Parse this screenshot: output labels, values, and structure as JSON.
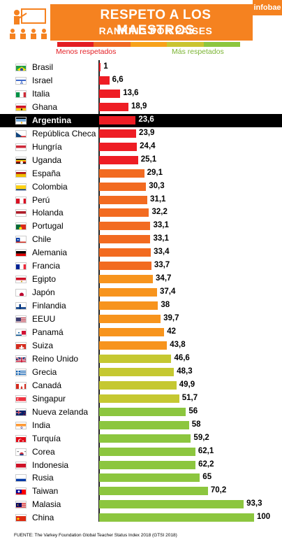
{
  "header": {
    "title": "RESPETO A LOS MAESTROS",
    "subtitle": "RANKING POR PAÍSES",
    "logo": "infobae",
    "teacher_icon": "teacher-classroom-icon"
  },
  "legend": {
    "left_label": "Menos respetados",
    "right_label": "Más respetados",
    "scale_colors": [
      "#e31d23",
      "#f06a22",
      "#f7a21b",
      "#c9c431",
      "#8cc63f"
    ]
  },
  "colors": {
    "red": "#ee1d24",
    "orange_dark": "#f26b21",
    "orange": "#f7941d",
    "yellow_green": "#c5c831",
    "green": "#8cc63f",
    "highlight_bg": "#000000"
  },
  "chart_data": {
    "type": "bar",
    "orientation": "horizontal",
    "title": "RESPETO A LOS MAESTROS",
    "subtitle": "RANKING POR PAÍSES",
    "xlim": [
      0,
      100
    ],
    "categories": [
      "Brasil",
      "Israel",
      "Italia",
      "Ghana",
      "Argentina",
      "República Checa",
      "Hungría",
      "Uganda",
      "España",
      "Colombia",
      "Perú",
      "Holanda",
      "Portugal",
      "Chile",
      "Alemania",
      "Francia",
      "Egipto",
      "Japón",
      "Finlandia",
      "EEUU",
      "Panamá",
      "Suiza",
      "Reino Unido",
      "Grecia",
      "Canadá",
      "Singapur",
      "Nueva zelanda",
      "India",
      "Turquía",
      "Corea",
      "Indonesia",
      "Rusia",
      "Taiwan",
      "Malasia",
      "China"
    ],
    "values": [
      1,
      6.6,
      13.6,
      18.9,
      23.6,
      23.9,
      24.4,
      25.1,
      29.1,
      30.3,
      31.1,
      32.2,
      33.1,
      33.1,
      33.4,
      33.7,
      34.7,
      37.4,
      38,
      39.7,
      42,
      43.8,
      46.6,
      48.3,
      49.9,
      51.7,
      56,
      58,
      59.2,
      62.1,
      62.2,
      65,
      70.2,
      93.3,
      100
    ],
    "value_labels": [
      "1",
      "6,6",
      "13,6",
      "18,9",
      "23,6",
      "23,9",
      "24,4",
      "25,1",
      "29,1",
      "30,3",
      "31,1",
      "32,2",
      "33,1",
      "33,1",
      "33,4",
      "33,7",
      "34,7",
      "37,4",
      "38",
      "39,7",
      "42",
      "43,8",
      "46,6",
      "48,3",
      "49,9",
      "51,7",
      "56",
      "58",
      "59,2",
      "62,1",
      "62,2",
      "65",
      "70,2",
      "93,3",
      "100"
    ],
    "highlighted": "Argentina",
    "flags": [
      "brazil-flag-icon",
      "israel-flag-icon",
      "italy-flag-icon",
      "ghana-flag-icon",
      "argentina-flag-icon",
      "czech-flag-icon",
      "hungary-flag-icon",
      "uganda-flag-icon",
      "spain-flag-icon",
      "colombia-flag-icon",
      "peru-flag-icon",
      "netherlands-flag-icon",
      "portugal-flag-icon",
      "chile-flag-icon",
      "germany-flag-icon",
      "france-flag-icon",
      "egypt-flag-icon",
      "japan-flag-icon",
      "finland-flag-icon",
      "usa-flag-icon",
      "panama-flag-icon",
      "switzerland-flag-icon",
      "uk-flag-icon",
      "greece-flag-icon",
      "canada-flag-icon",
      "singapore-flag-icon",
      "new-zealand-flag-icon",
      "india-flag-icon",
      "turkey-flag-icon",
      "korea-flag-icon",
      "indonesia-flag-icon",
      "russia-flag-icon",
      "taiwan-flag-icon",
      "malaysia-flag-icon",
      "china-flag-icon"
    ],
    "grid": false,
    "legend": "top"
  },
  "source": "FUENTE: The Varkey Foundation Global Teacher Status Index 2018 (GTSI 2018)"
}
